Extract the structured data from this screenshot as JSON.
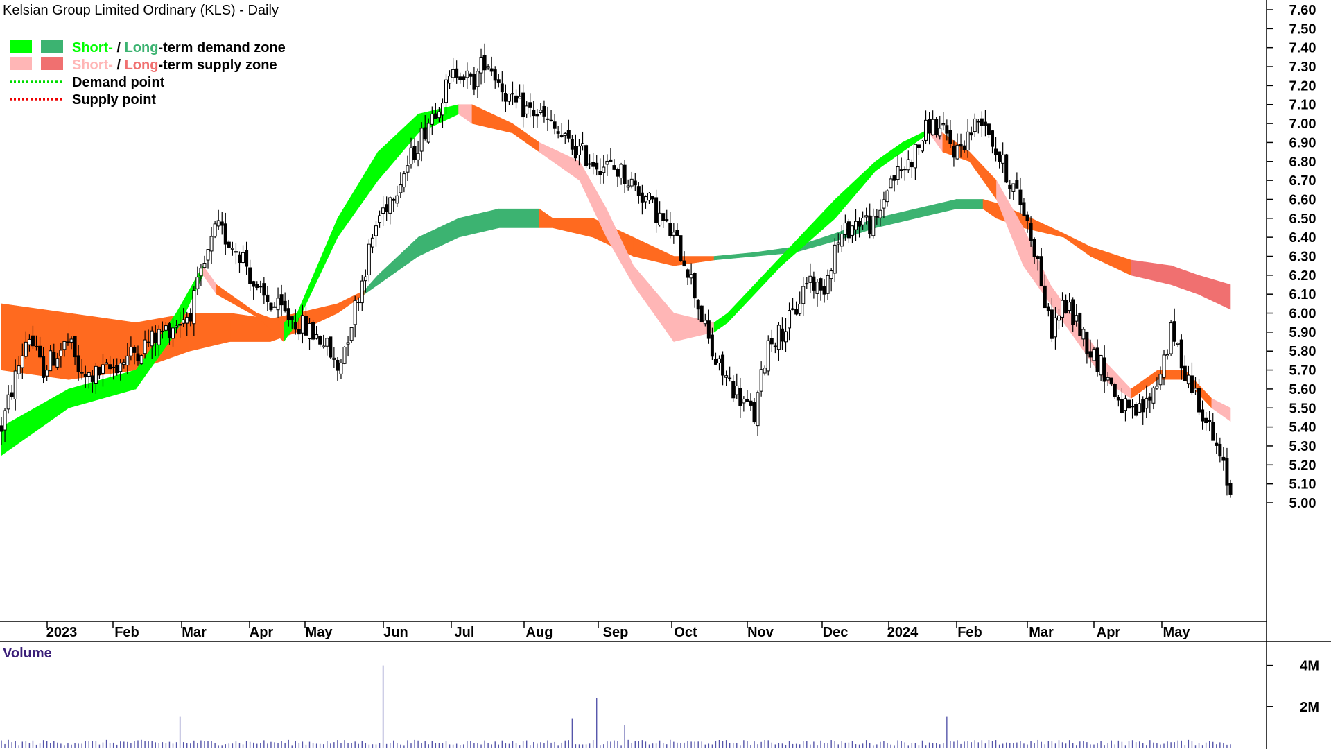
{
  "chart_data": {
    "type": "candlestick",
    "title": "Kelsian Group Limited Ordinary (KLS) - Daily",
    "y_axis": {
      "ylim": [
        4.95,
        7.65
      ],
      "ticks": [
        "7.60",
        "7.50",
        "7.40",
        "7.30",
        "7.20",
        "7.10",
        "7.00",
        "6.90",
        "6.80",
        "6.70",
        "6.60",
        "6.50",
        "6.40",
        "6.30",
        "6.20",
        "6.10",
        "6.00",
        "5.90",
        "5.80",
        "5.70",
        "5.60",
        "5.50",
        "5.40",
        "5.30",
        "5.20",
        "5.10",
        "5.00"
      ],
      "side": "right"
    },
    "x_axis": {
      "labels": [
        "2023",
        "Feb",
        "Mar",
        "Apr",
        "May",
        "Jun",
        "Jul",
        "Aug",
        "Sep",
        "Oct",
        "Nov",
        "Dec",
        "2024",
        "Feb",
        "Mar",
        "Apr",
        "May"
      ],
      "grid": false
    },
    "legend": {
      "placement": "top-left",
      "entries": [
        {
          "parts": [
            {
              "text": "Short-",
              "color": "#00ff00"
            },
            {
              "text": " / ",
              "color": "#000000"
            },
            {
              "text": "Long",
              "color": "#3cb371"
            },
            {
              "text": "-term demand zone",
              "color": "#000000"
            }
          ],
          "swatches": [
            "#00ff00",
            "#3cb371"
          ],
          "style": "box"
        },
        {
          "parts": [
            {
              "text": "Short-",
              "color": "#ffb6b6"
            },
            {
              "text": " / ",
              "color": "#000000"
            },
            {
              "text": "Long",
              "color": "#f07070"
            },
            {
              "text": "-term supply zone",
              "color": "#000000"
            }
          ],
          "swatches": [
            "#ffb6b6",
            "#f07070"
          ],
          "style": "box"
        },
        {
          "parts": [
            {
              "text": "Demand point",
              "color": "#000000"
            }
          ],
          "swatches": [
            "#00dd00"
          ],
          "style": "dotted"
        },
        {
          "parts": [
            {
              "text": "Supply point",
              "color": "#000000"
            }
          ],
          "swatches": [
            "#ee0000"
          ],
          "style": "dotted"
        }
      ]
    },
    "price_anchors": [
      [
        0,
        5.4
      ],
      [
        2,
        5.9
      ],
      [
        3,
        5.7
      ],
      [
        5,
        5.85
      ],
      [
        6,
        5.65
      ],
      [
        8,
        5.7
      ],
      [
        10,
        5.8
      ],
      [
        12,
        5.9
      ],
      [
        14,
        6.0
      ],
      [
        16,
        6.45
      ],
      [
        18,
        6.3
      ],
      [
        19,
        6.1
      ],
      [
        21,
        6.0
      ],
      [
        22,
        5.95
      ],
      [
        24,
        5.85
      ],
      [
        25,
        5.7
      ],
      [
        26,
        5.95
      ],
      [
        28,
        6.5
      ],
      [
        30,
        6.75
      ],
      [
        32,
        7.05
      ],
      [
        34,
        7.3
      ],
      [
        35,
        7.2
      ],
      [
        36,
        7.35
      ],
      [
        38,
        7.1
      ],
      [
        40,
        7.05
      ],
      [
        42,
        6.9
      ],
      [
        44,
        6.8
      ],
      [
        46,
        6.75
      ],
      [
        48,
        6.6
      ],
      [
        49,
        6.5
      ],
      [
        50,
        6.4
      ],
      [
        51,
        6.25
      ],
      [
        52,
        6.0
      ],
      [
        53,
        5.75
      ],
      [
        54,
        5.65
      ],
      [
        55,
        5.55
      ],
      [
        56,
        5.45
      ],
      [
        57,
        5.85
      ],
      [
        58,
        5.9
      ],
      [
        59,
        6.0
      ],
      [
        60,
        6.2
      ],
      [
        61,
        6.1
      ],
      [
        62,
        6.35
      ],
      [
        63,
        6.45
      ],
      [
        64,
        6.5
      ],
      [
        65,
        6.45
      ],
      [
        66,
        6.7
      ],
      [
        67,
        6.75
      ],
      [
        68,
        6.85
      ],
      [
        69,
        7.0
      ],
      [
        70,
        6.95
      ],
      [
        71,
        6.85
      ],
      [
        72,
        6.95
      ],
      [
        73,
        7.05
      ],
      [
        74,
        6.85
      ],
      [
        75,
        6.7
      ],
      [
        76,
        6.55
      ],
      [
        77,
        6.3
      ],
      [
        78,
        5.9
      ],
      [
        79,
        6.05
      ],
      [
        80,
        5.95
      ],
      [
        81,
        5.8
      ],
      [
        82,
        5.7
      ],
      [
        83,
        5.55
      ],
      [
        84,
        5.45
      ],
      [
        85,
        5.5
      ],
      [
        86,
        5.65
      ],
      [
        87,
        5.9
      ],
      [
        88,
        5.7
      ],
      [
        89,
        5.55
      ],
      [
        90,
        5.35
      ],
      [
        91,
        5.15
      ],
      [
        91.4,
        5.05
      ]
    ],
    "short_term_zone": [
      [
        0,
        5.25,
        5.4,
        "demand"
      ],
      [
        5,
        5.5,
        5.6,
        "demand"
      ],
      [
        10,
        5.6,
        5.7,
        "demand"
      ],
      [
        13,
        5.9,
        6.0,
        "demand"
      ],
      [
        15,
        6.2,
        6.25,
        "demand"
      ],
      [
        16,
        6.1,
        6.15,
        "supply"
      ],
      [
        19,
        5.98,
        6.0,
        "supply"
      ],
      [
        21,
        5.85,
        5.95,
        "supply"
      ],
      [
        22,
        5.95,
        6.0,
        "demand"
      ],
      [
        25,
        6.4,
        6.5,
        "demand"
      ],
      [
        28,
        6.7,
        6.85,
        "demand"
      ],
      [
        31,
        6.95,
        7.05,
        "demand"
      ],
      [
        34,
        7.05,
        7.1,
        "demand"
      ],
      [
        35,
        7.0,
        7.1,
        "supply"
      ],
      [
        38,
        6.95,
        7.0,
        "supply"
      ],
      [
        40,
        6.85,
        6.9,
        "supply"
      ],
      [
        43,
        6.7,
        6.8,
        "supply"
      ],
      [
        45,
        6.4,
        6.55,
        "supply"
      ],
      [
        47,
        6.15,
        6.25,
        "supply"
      ],
      [
        50,
        5.85,
        6.0,
        "supply"
      ],
      [
        53,
        5.9,
        5.95,
        "supply"
      ],
      [
        54,
        5.95,
        6.0,
        "demand"
      ],
      [
        58,
        6.25,
        6.3,
        "demand"
      ],
      [
        62,
        6.5,
        6.6,
        "demand"
      ],
      [
        65,
        6.75,
        6.8,
        "demand"
      ],
      [
        67,
        6.85,
        6.9,
        "demand"
      ],
      [
        69,
        6.95,
        6.97,
        "demand"
      ],
      [
        70,
        6.85,
        6.95,
        "supply"
      ],
      [
        72,
        6.8,
        6.85,
        "supply"
      ],
      [
        74,
        6.6,
        6.7,
        "supply"
      ],
      [
        76,
        6.25,
        6.45,
        "supply"
      ],
      [
        78,
        6.05,
        6.15,
        "supply"
      ],
      [
        80,
        5.85,
        5.95,
        "supply"
      ],
      [
        82,
        5.65,
        5.75,
        "supply"
      ],
      [
        84,
        5.55,
        5.6,
        "supply"
      ],
      [
        86,
        5.65,
        5.7,
        "supply"
      ],
      [
        88,
        5.65,
        5.7,
        "supply"
      ],
      [
        90,
        5.5,
        5.55,
        "supply"
      ],
      [
        91.4,
        5.43,
        5.5,
        "supply"
      ]
    ],
    "long_term_zone": [
      [
        0,
        5.7,
        6.05,
        "supply"
      ],
      [
        5,
        5.65,
        6.0,
        "supply"
      ],
      [
        10,
        5.7,
        5.95,
        "supply"
      ],
      [
        14,
        5.8,
        6.0,
        "supply"
      ],
      [
        17,
        5.85,
        6.0,
        "supply"
      ],
      [
        20,
        5.85,
        5.97,
        "supply"
      ],
      [
        22,
        5.9,
        6.0,
        "supply"
      ],
      [
        25,
        6.0,
        6.05,
        "supply"
      ],
      [
        27,
        6.1,
        6.12,
        "supply"
      ],
      [
        28,
        6.15,
        6.2,
        "demand"
      ],
      [
        31,
        6.3,
        6.4,
        "demand"
      ],
      [
        34,
        6.4,
        6.5,
        "demand"
      ],
      [
        37,
        6.45,
        6.55,
        "demand"
      ],
      [
        40,
        6.45,
        6.55,
        "demand"
      ],
      [
        41,
        6.45,
        6.5,
        "supply"
      ],
      [
        44,
        6.4,
        6.5,
        "supply"
      ],
      [
        47,
        6.3,
        6.4,
        "supply"
      ],
      [
        50,
        6.25,
        6.3,
        "supply"
      ],
      [
        53,
        6.28,
        6.3,
        "supply"
      ],
      [
        56,
        6.3,
        6.32,
        "demand"
      ],
      [
        59,
        6.32,
        6.35,
        "demand"
      ],
      [
        62,
        6.38,
        6.42,
        "demand"
      ],
      [
        65,
        6.45,
        6.5,
        "demand"
      ],
      [
        68,
        6.5,
        6.55,
        "demand"
      ],
      [
        71,
        6.55,
        6.6,
        "demand"
      ],
      [
        73,
        6.55,
        6.6,
        "demand"
      ],
      [
        74,
        6.5,
        6.58,
        "supply"
      ],
      [
        76,
        6.45,
        6.52,
        "supply"
      ],
      [
        79,
        6.4,
        6.42,
        "supply"
      ],
      [
        81,
        6.3,
        6.35,
        "supply"
      ],
      [
        84,
        6.2,
        6.28,
        "supply"
      ],
      [
        87,
        6.15,
        6.25,
        "supply"
      ],
      [
        89,
        6.1,
        6.2,
        "supply"
      ],
      [
        91.4,
        6.02,
        6.15,
        "supply"
      ]
    ],
    "volume": {
      "label": "Volume",
      "ticks": [
        "4M",
        "2M"
      ],
      "ylim": [
        0,
        5000000
      ],
      "bar_color": "#5555aa",
      "spikes": [
        [
          13.2,
          1500000
        ],
        [
          28.5,
          4000000
        ],
        [
          42.4,
          1400000
        ],
        [
          44.2,
          2400000
        ],
        [
          46.4,
          1100000
        ],
        [
          70.2,
          2500000
        ],
        [
          70.4,
          1500000
        ]
      ]
    }
  }
}
